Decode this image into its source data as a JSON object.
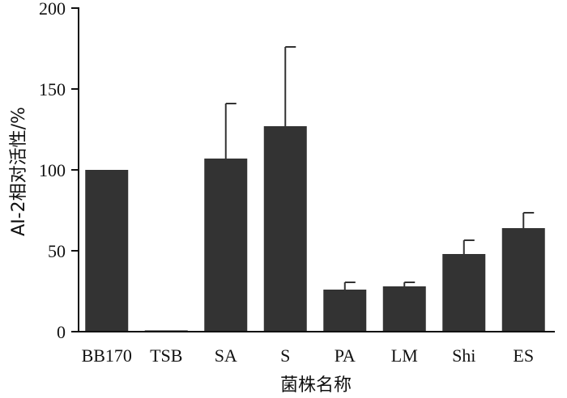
{
  "chart_data": {
    "type": "bar",
    "title": "",
    "xlabel": "菌株名称",
    "ylabel": "AI-2相对活性/%",
    "ylim": [
      0,
      200
    ],
    "yticks": [
      0,
      50,
      100,
      150,
      200
    ],
    "grid": false,
    "legend": "none",
    "categories": [
      "BB170",
      "TSB",
      "SA",
      "S",
      "PA",
      "LM",
      "Shi",
      "ES"
    ],
    "series": [
      {
        "values": [
          100,
          0.8,
          107,
          127,
          26,
          28,
          48,
          64
        ],
        "errors": [
          0,
          0,
          34,
          49,
          4.5,
          2.5,
          8.5,
          9.5
        ],
        "color": "#333333"
      }
    ]
  }
}
